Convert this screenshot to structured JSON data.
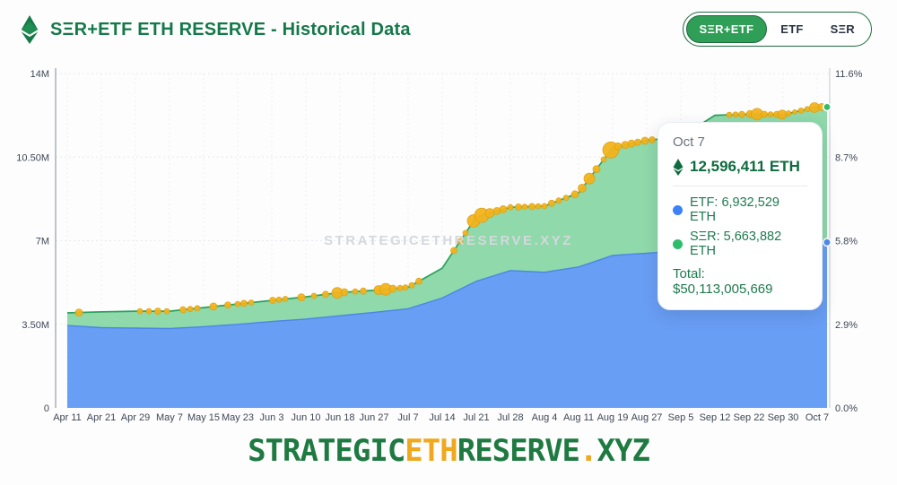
{
  "header": {
    "title": "SΞR+ETF ETH RESERVE - Historical Data",
    "logo": "eth-diamond-icon"
  },
  "toggle": {
    "options": [
      {
        "label": "SΞR+ETF",
        "selected": true
      },
      {
        "label": "ETF",
        "selected": false
      },
      {
        "label": "SΞR",
        "selected": false
      }
    ]
  },
  "watermark": "STRATEGICETHRESERVE.XYZ",
  "tooltip": {
    "date": "Oct 7",
    "total_eth": "12,596,411 ETH",
    "rows": [
      {
        "label": "ETF: 6,932,529 ETH",
        "color": "#3b82f6"
      },
      {
        "label": "SΞR: 5,663,882 ETH",
        "color": "#2ebd6b"
      }
    ],
    "total_usd": "Total: $50,113,005,669"
  },
  "footer": {
    "parts": [
      {
        "text": "STRATEGIC",
        "color": "#1e7a41"
      },
      {
        "text": "ETH",
        "color": "#f0a81c"
      },
      {
        "text": "RESERVE",
        "color": "#1e7a41"
      },
      {
        "text": ".",
        "color": "#f0a81c"
      },
      {
        "text": "XYZ",
        "color": "#1e7a41"
      }
    ]
  },
  "chart_data": {
    "type": "area",
    "stacked": true,
    "title": "SΞR+ETF ETH RESERVE - Historical Data",
    "ylim_millions": [
      0,
      14
    ],
    "y_left_ticks": [
      "0",
      "3.50M",
      "7M",
      "10.50M",
      "14M"
    ],
    "y_right_ticks": [
      "0.0%",
      "2.9%",
      "5.8%",
      "8.7%",
      "11.6%"
    ],
    "grid": true,
    "legend_position": "tooltip",
    "categories": [
      "Apr 11",
      "Apr 21",
      "Apr 29",
      "May 7",
      "May 15",
      "May 23",
      "Jun 3",
      "Jun 10",
      "Jun 18",
      "Jun 27",
      "Jul 7",
      "Jul 14",
      "Jul 21",
      "Jul 28",
      "Aug 4",
      "Aug 11",
      "Aug 19",
      "Aug 27",
      "Sep 5",
      "Sep 12",
      "Sep 22",
      "Sep 30",
      "Oct 7"
    ],
    "series": [
      {
        "name": "ETF",
        "fill": "#699ef5",
        "line": "#4b87e3",
        "values_millions": [
          3.45,
          3.36,
          3.34,
          3.32,
          3.4,
          3.5,
          3.62,
          3.72,
          3.86,
          4.0,
          4.15,
          4.6,
          5.3,
          5.75,
          5.68,
          5.9,
          6.38,
          6.48,
          6.58,
          6.66,
          6.76,
          6.86,
          6.933
        ]
      },
      {
        "name": "SΞR",
        "fill": "#8fd9ab",
        "line": "#2aa25d",
        "values_millions": [
          0.53,
          0.66,
          0.71,
          0.73,
          0.8,
          0.85,
          0.88,
          0.93,
          0.97,
          0.92,
          0.9,
          1.25,
          2.7,
          2.65,
          2.77,
          3.1,
          4.52,
          4.72,
          4.77,
          5.59,
          5.54,
          5.42,
          5.664
        ]
      }
    ],
    "end_markers": [
      {
        "series": "total",
        "color": "#2ebd6b"
      },
      {
        "series": "ETF",
        "color": "#4f8df0"
      }
    ],
    "purchase_bubbles_color": "#f3b41d",
    "purchase_bubbles": [
      [
        88,
        4
      ],
      [
        156,
        3
      ],
      [
        166,
        3
      ],
      [
        176,
        3.5
      ],
      [
        186,
        3
      ],
      [
        204,
        3.5
      ],
      [
        212,
        3
      ],
      [
        220,
        3
      ],
      [
        238,
        4
      ],
      [
        254,
        3.5
      ],
      [
        265,
        3
      ],
      [
        272,
        3.5
      ],
      [
        280,
        3
      ],
      [
        304,
        3.5
      ],
      [
        311,
        3
      ],
      [
        318,
        3
      ],
      [
        336,
        4
      ],
      [
        350,
        3
      ],
      [
        363,
        3.5
      ],
      [
        376,
        6
      ],
      [
        384,
        4
      ],
      [
        396,
        3
      ],
      [
        405,
        3.5
      ],
      [
        422,
        5
      ],
      [
        430,
        6.5
      ],
      [
        438,
        4
      ],
      [
        446,
        3
      ],
      [
        452,
        3
      ],
      [
        459,
        3
      ],
      [
        467,
        3.5
      ],
      [
        506,
        3.5
      ],
      [
        513,
        3
      ],
      [
        519,
        3
      ],
      [
        528,
        7
      ],
      [
        537,
        8
      ],
      [
        546,
        5
      ],
      [
        554,
        4
      ],
      [
        561,
        4
      ],
      [
        569,
        3
      ],
      [
        578,
        3.5
      ],
      [
        585,
        3
      ],
      [
        593,
        3.5
      ],
      [
        600,
        3
      ],
      [
        607,
        3
      ],
      [
        615,
        3.5
      ],
      [
        623,
        3
      ],
      [
        631,
        3
      ],
      [
        641,
        4
      ],
      [
        649,
        4.5
      ],
      [
        657,
        6
      ],
      [
        665,
        4
      ],
      [
        673,
        3
      ],
      [
        681,
        9
      ],
      [
        689,
        4
      ],
      [
        697,
        4
      ],
      [
        704,
        4
      ],
      [
        711,
        3.5
      ],
      [
        719,
        4
      ],
      [
        727,
        3.5
      ],
      [
        813,
        3
      ],
      [
        820,
        3
      ],
      [
        827,
        3.5
      ],
      [
        836,
        4
      ],
      [
        844,
        6.5
      ],
      [
        852,
        3.5
      ],
      [
        859,
        3
      ],
      [
        866,
        3.5
      ],
      [
        872,
        5
      ],
      [
        879,
        3
      ],
      [
        886,
        2.5
      ],
      [
        893,
        3
      ],
      [
        900,
        3
      ],
      [
        908,
        5.5
      ],
      [
        916,
        4
      ]
    ]
  }
}
